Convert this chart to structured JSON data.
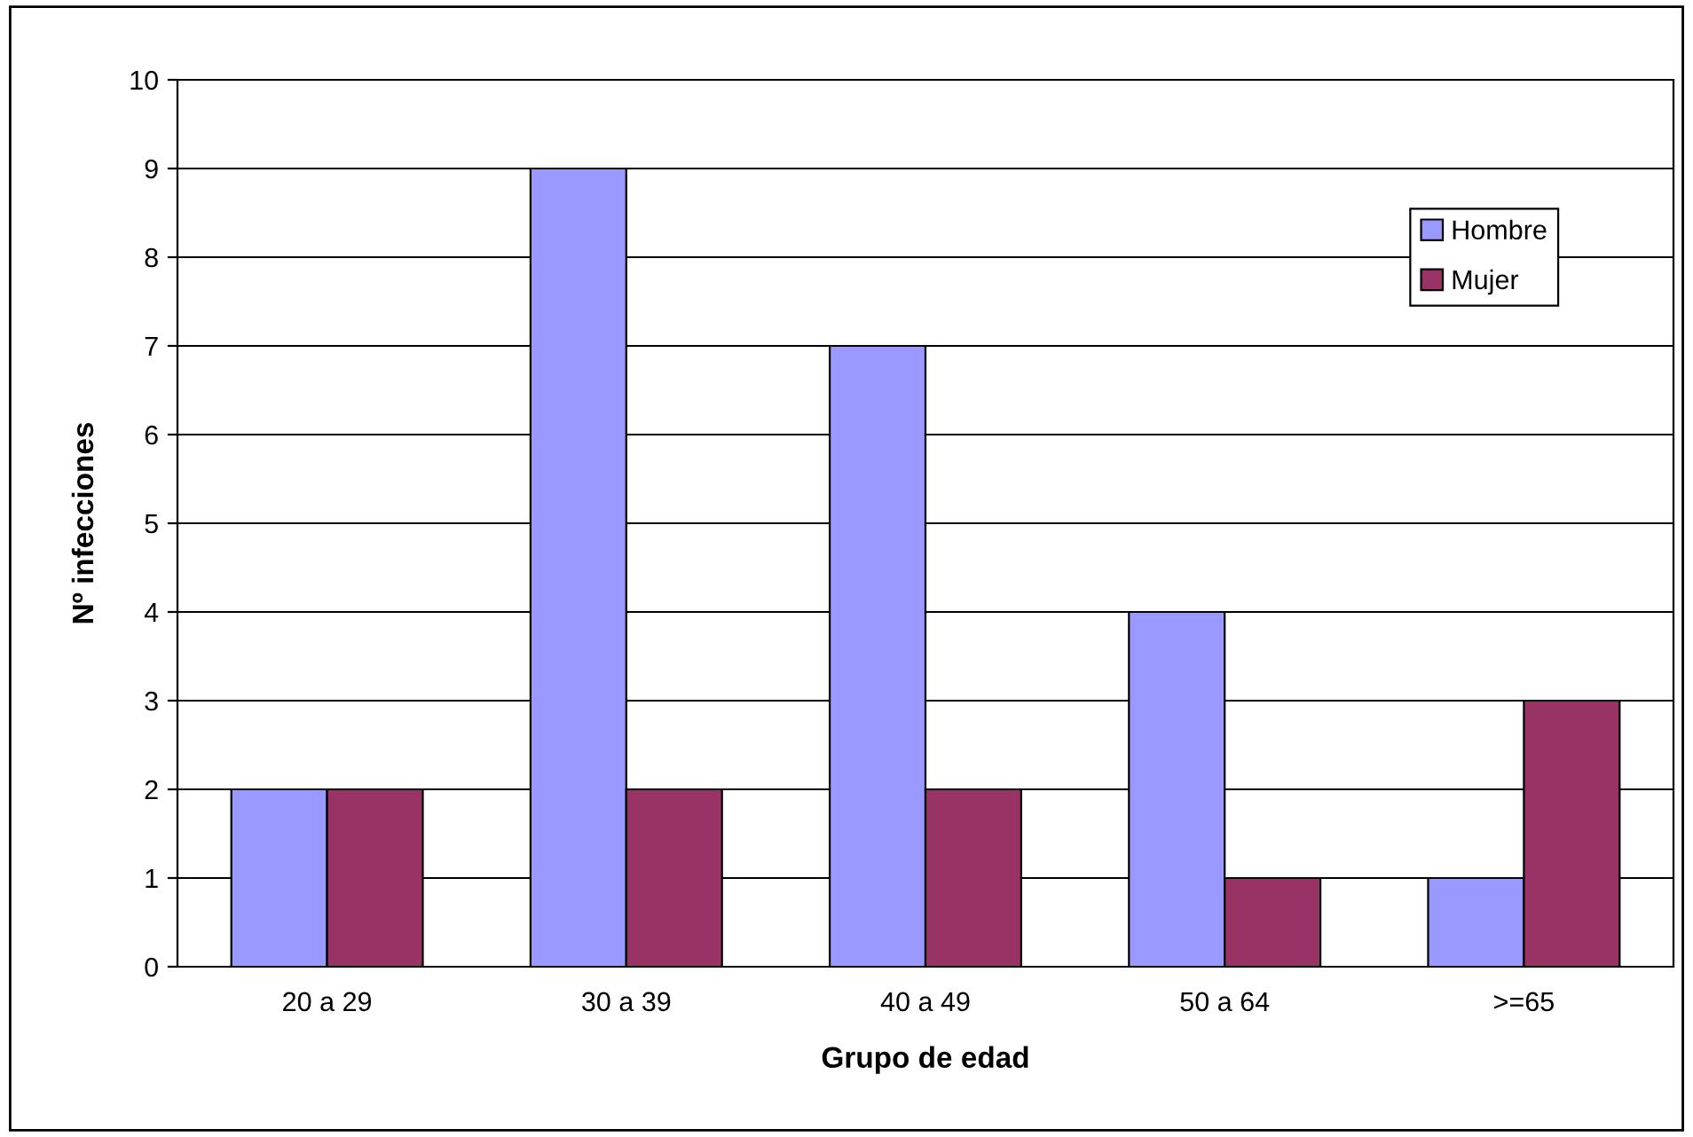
{
  "chart_data": {
    "type": "bar",
    "xlabel": "Grupo de edad",
    "ylabel": "Nº infecciones",
    "categories": [
      "20 a 29",
      "30 a 39",
      "40 a 49",
      "50 a 64",
      ">=65"
    ],
    "series": [
      {
        "name": "Hombre",
        "color": "#9999ff",
        "values": [
          2,
          9,
          7,
          4,
          1
        ]
      },
      {
        "name": "Mujer",
        "color": "#993366",
        "values": [
          2,
          2,
          2,
          1,
          3
        ]
      }
    ],
    "ylim": [
      0,
      10
    ],
    "yticks": [
      0,
      1,
      2,
      3,
      4,
      5,
      6,
      7,
      8,
      9,
      10
    ],
    "grid": "y",
    "legend": "top right"
  }
}
